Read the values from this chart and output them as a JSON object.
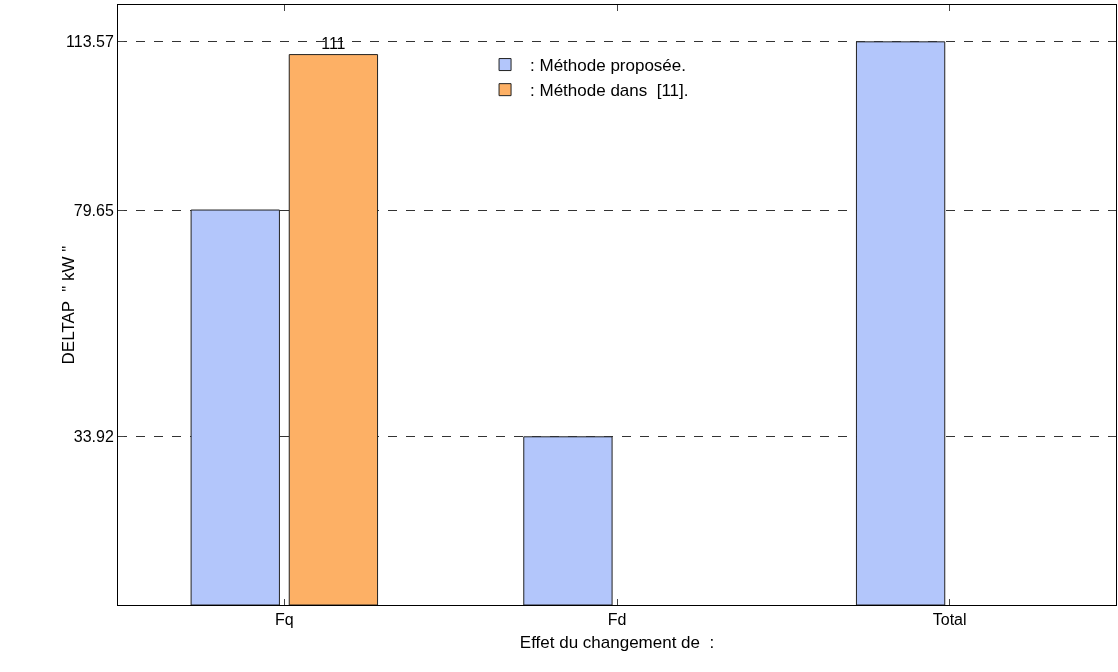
{
  "chart_data": {
    "type": "bar",
    "xlabel": "Effet du changement de  :",
    "ylabel": "DELTAP  \" kW \"",
    "categories": [
      "Fq",
      "Fd",
      "Total"
    ],
    "series": [
      {
        "name": ": Méthode proposée.",
        "color": "#b3c6fb",
        "values": [
          79.65,
          33.92,
          113.57
        ]
      },
      {
        "name": ": Méthode dans  [11].",
        "color": "#fdb065",
        "values": [
          111,
          null,
          null
        ],
        "value_labels": [
          "111",
          null,
          null
        ]
      }
    ],
    "ylim": [
      0,
      121
    ],
    "yticks": [
      33.92,
      79.65,
      113.57
    ],
    "grid": "y",
    "legend": "top"
  }
}
